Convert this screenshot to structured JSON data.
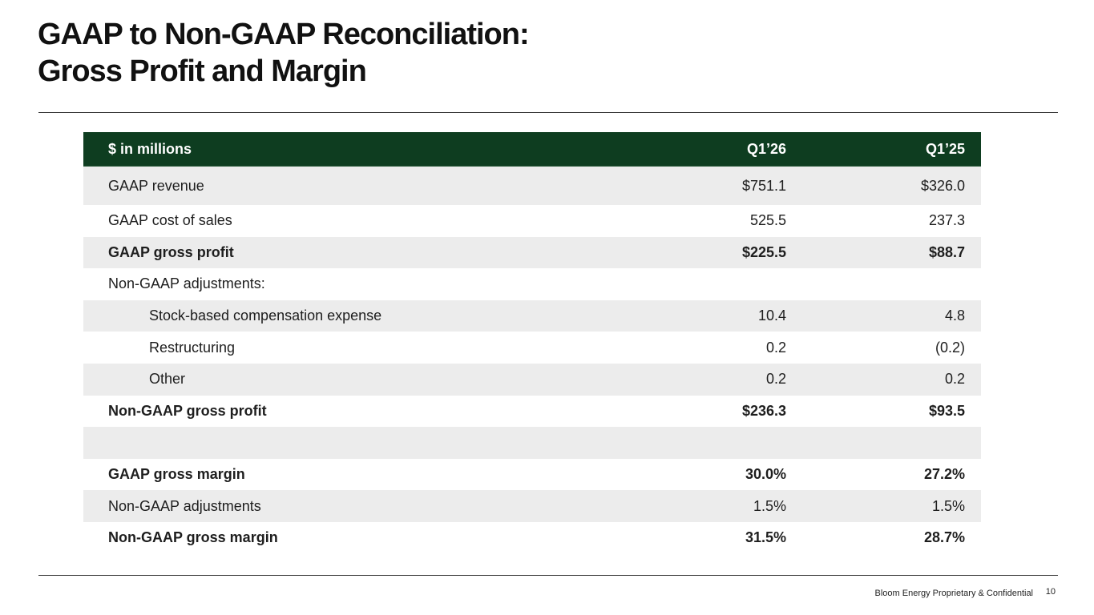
{
  "title": {
    "line1": "GAAP to Non-GAAP Reconciliation:",
    "line2": "Gross Profit and Margin"
  },
  "table": {
    "headers": {
      "label": "$ in millions",
      "col1": "Q1’26",
      "col2": "Q1’25"
    },
    "rows": [
      {
        "label": "GAAP revenue",
        "col1": "$751.1",
        "col2": "$326.0"
      },
      {
        "label": "GAAP cost of sales",
        "col1": "525.5",
        "col2": "237.3"
      },
      {
        "label": "GAAP gross profit",
        "col1": "$225.5",
        "col2": "$88.7"
      },
      {
        "label": "Non-GAAP adjustments:",
        "col1": "",
        "col2": ""
      },
      {
        "label": "Stock-based compensation expense",
        "col1": "10.4",
        "col2": "4.8"
      },
      {
        "label": "Restructuring",
        "col1": "0.2",
        "col2": "(0.2)"
      },
      {
        "label": "Other",
        "col1": "0.2",
        "col2": "0.2"
      },
      {
        "label": "Non-GAAP gross profit",
        "col1": "$236.3",
        "col2": "$93.5"
      },
      {
        "label": "",
        "col1": "",
        "col2": ""
      },
      {
        "label": "GAAP gross margin",
        "col1": "30.0%",
        "col2": "27.2%"
      },
      {
        "label": "Non-GAAP adjustments",
        "col1": "1.5%",
        "col2": "1.5%"
      },
      {
        "label": "Non-GAAP gross margin",
        "col1": "31.5%",
        "col2": "28.7%"
      }
    ]
  },
  "footer": {
    "text": "Bloom Energy Proprietary & Confidential",
    "page": "10"
  },
  "colors": {
    "header_bg": "#0e3d20",
    "shaded_row": "#ececec"
  }
}
